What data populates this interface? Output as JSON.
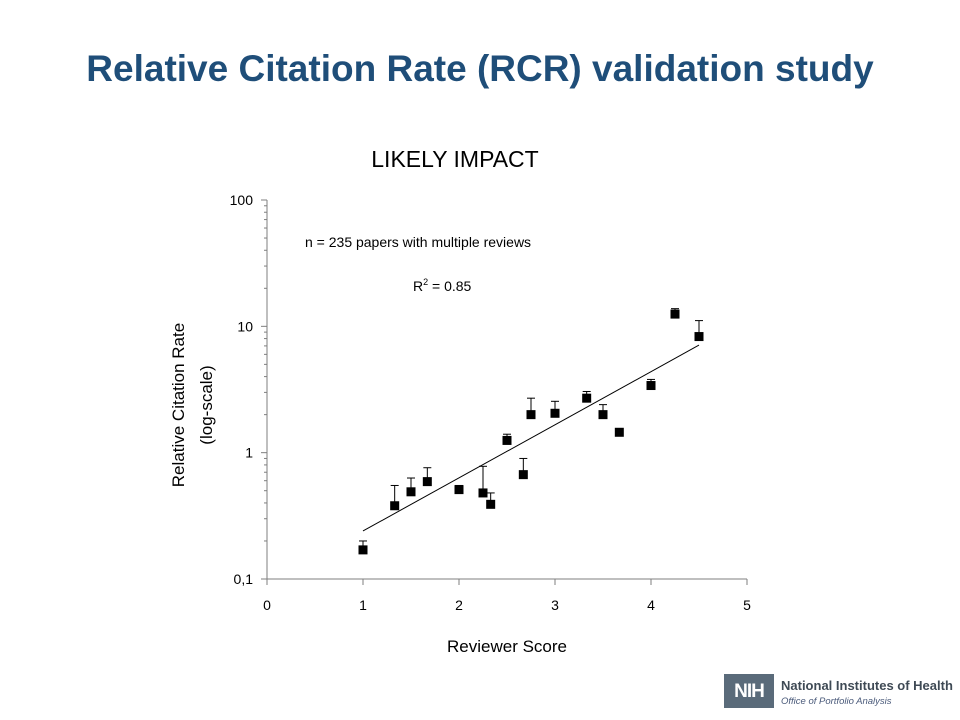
{
  "page": {
    "title": "Relative Citation Rate (RCR) validation study"
  },
  "chart_data": {
    "type": "scatter",
    "title": "LIKELY IMPACT",
    "xlabel": "Reviewer Score",
    "ylabel_lines": [
      "Relative Citation Rate",
      "(log-scale)"
    ],
    "x_ticks": [
      "0",
      "1",
      "2",
      "3",
      "4",
      "5"
    ],
    "y_ticks": [
      "0,1",
      "1",
      "10",
      "100"
    ],
    "x_range": [
      0,
      5
    ],
    "y_range": [
      0.1,
      100
    ],
    "y_scale": "log",
    "grid": false,
    "annotations": {
      "n_text": "n = 235 papers with multiple reviews",
      "r2_prefix": "R",
      "r2_sup": "2",
      "r2_value": " = 0.85"
    },
    "points": [
      {
        "x": 1.0,
        "y": 0.17,
        "err": 0.03
      },
      {
        "x": 1.33,
        "y": 0.38,
        "err": 0.17
      },
      {
        "x": 1.5,
        "y": 0.49,
        "err": 0.14
      },
      {
        "x": 1.67,
        "y": 0.59,
        "err": 0.17
      },
      {
        "x": 2.0,
        "y": 0.51,
        "err": 0.04
      },
      {
        "x": 2.25,
        "y": 0.48,
        "err": 0.3
      },
      {
        "x": 2.33,
        "y": 0.39,
        "err": 0.09
      },
      {
        "x": 2.5,
        "y": 1.25,
        "err": 0.15
      },
      {
        "x": 2.67,
        "y": 0.67,
        "err": 0.23
      },
      {
        "x": 2.75,
        "y": 2.0,
        "err": 0.7
      },
      {
        "x": 3.0,
        "y": 2.05,
        "err": 0.5
      },
      {
        "x": 3.33,
        "y": 2.7,
        "err": 0.35
      },
      {
        "x": 3.5,
        "y": 2.0,
        "err": 0.4
      },
      {
        "x": 3.67,
        "y": 1.45,
        "err": 0.1
      },
      {
        "x": 4.0,
        "y": 3.4,
        "err": 0.4
      },
      {
        "x": 4.25,
        "y": 12.5,
        "err": 1.3
      },
      {
        "x": 4.5,
        "y": 8.3,
        "err": 2.8
      }
    ],
    "trendline": {
      "x": [
        1.0,
        4.5
      ],
      "y": [
        0.24,
        7.1
      ]
    },
    "colors": {
      "marker": "#000000",
      "line": "#000000"
    }
  },
  "logo": {
    "box_text": "NIH",
    "name": "National Institutes of Health",
    "subtitle": "Office of Portfolio Analysis"
  }
}
